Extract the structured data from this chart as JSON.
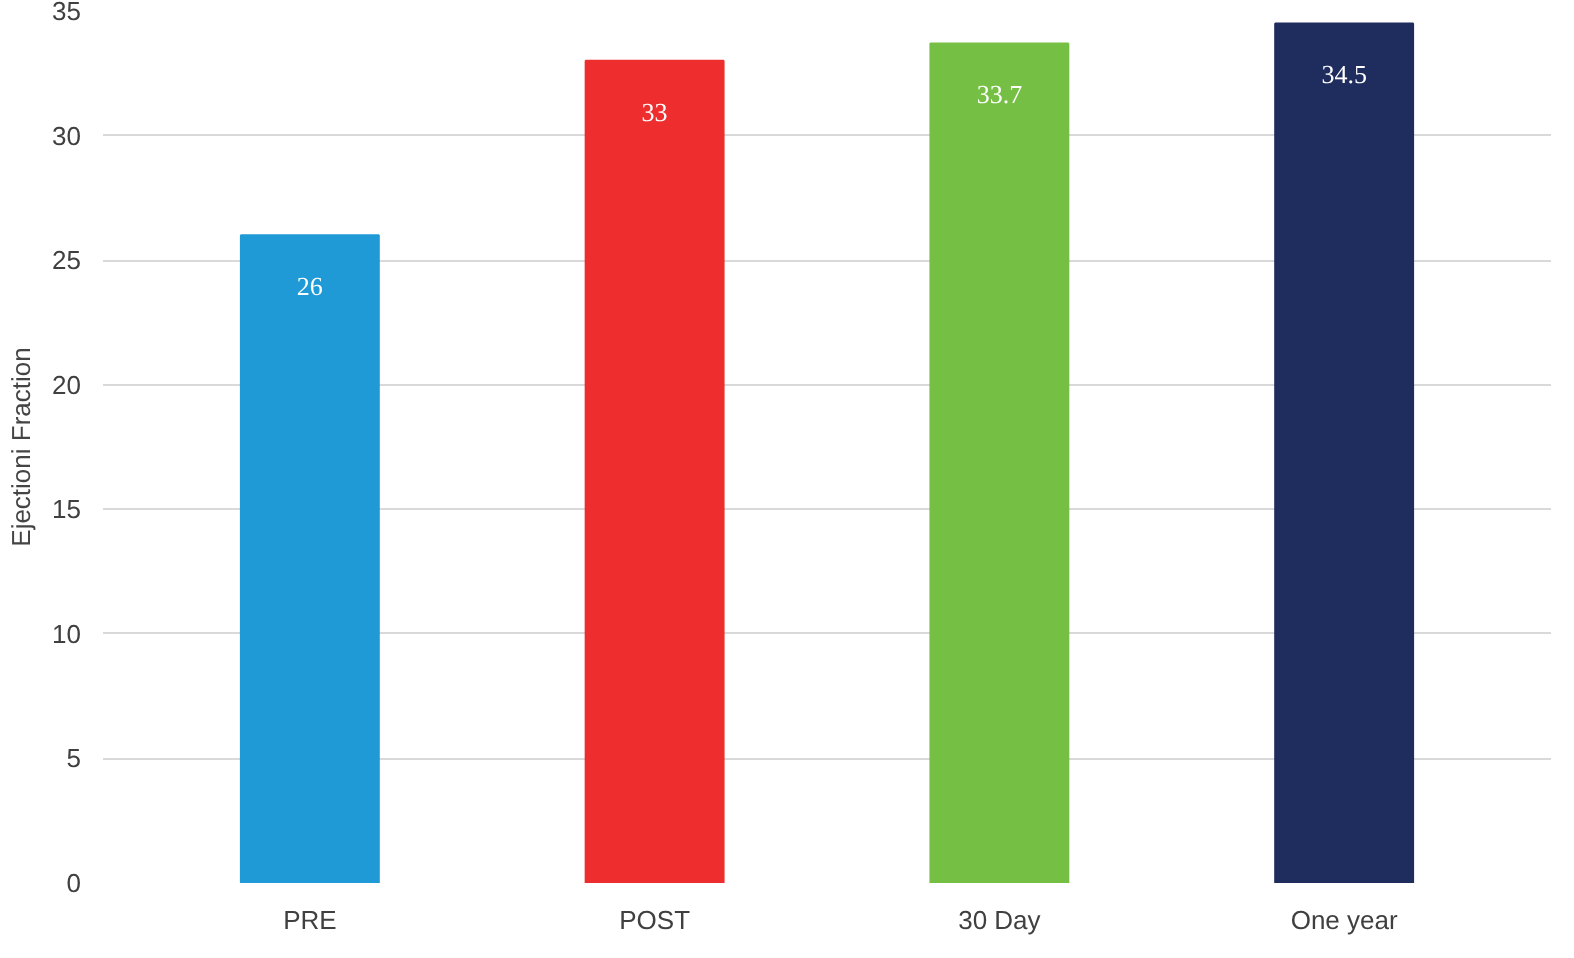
{
  "chart_data": {
    "type": "bar",
    "ylabel": "Ejectioni Fraction",
    "categories": [
      "PRE",
      "POST",
      "30 Day",
      "One year"
    ],
    "values": [
      26,
      33,
      33.7,
      34.5
    ],
    "colors": [
      "#1f9ad6",
      "#ee2e2e",
      "#76bf45",
      "#1f2d5e"
    ],
    "ylim": [
      0,
      35
    ],
    "yticks": [
      0,
      5,
      10,
      15,
      20,
      25,
      30,
      35
    ],
    "grid": "y",
    "data_labels": true
  }
}
